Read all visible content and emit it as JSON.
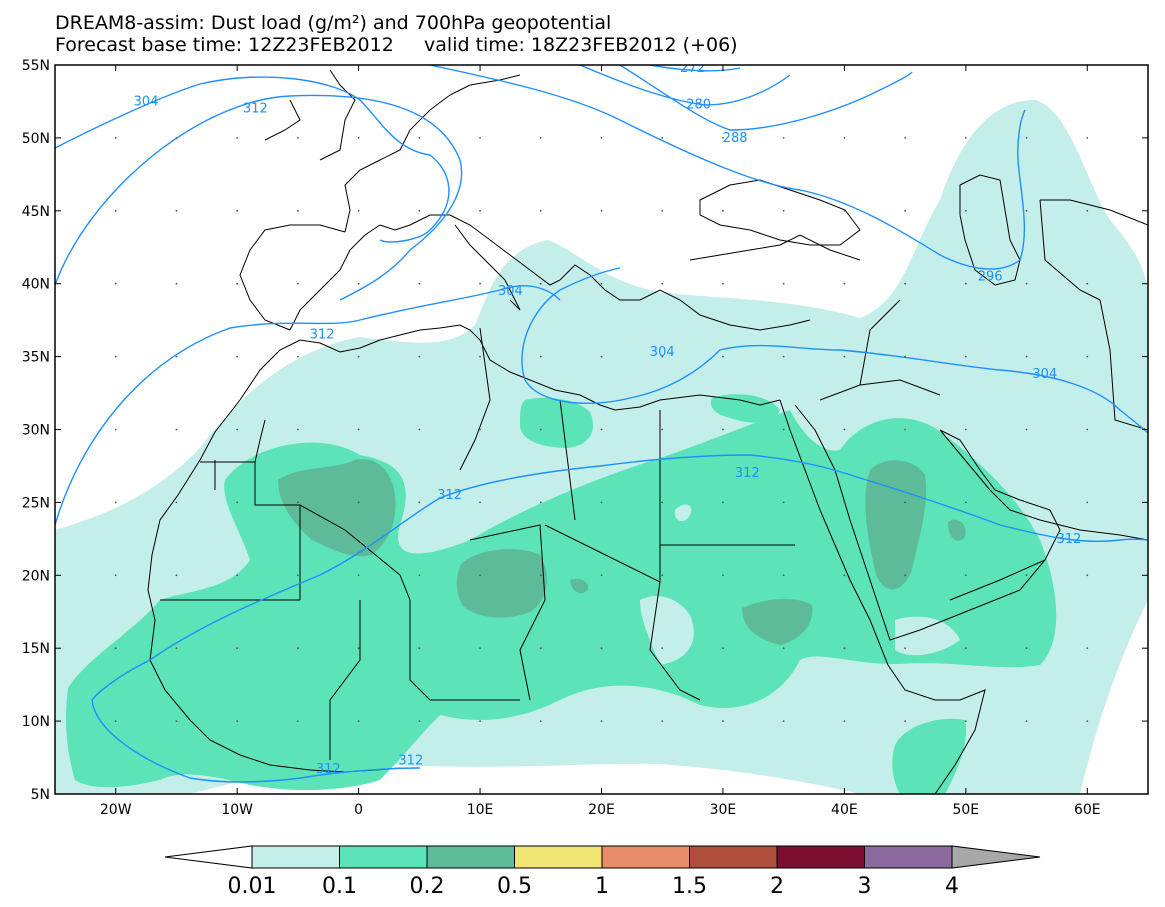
{
  "title": {
    "line1": "DREAM8-assim: Dust load (g/m²) and 700hPa geopotential",
    "line2": "Forecast base time: 12Z23FEB2012     valid time: 18Z23FEB2012 (+06)"
  },
  "map": {
    "lon_range": [
      -25,
      65
    ],
    "lat_range": [
      5,
      55
    ],
    "lat_ticks": [
      {
        "lat": 55,
        "label": "55N"
      },
      {
        "lat": 50,
        "label": "50N"
      },
      {
        "lat": 45,
        "label": "45N"
      },
      {
        "lat": 40,
        "label": "40N"
      },
      {
        "lat": 35,
        "label": "35N"
      },
      {
        "lat": 30,
        "label": "30N"
      },
      {
        "lat": 25,
        "label": "25N"
      },
      {
        "lat": 20,
        "label": "20N"
      },
      {
        "lat": 15,
        "label": "15N"
      },
      {
        "lat": 10,
        "label": "10N"
      },
      {
        "lat": 5,
        "label": "5N"
      }
    ],
    "lon_ticks": [
      {
        "lon": -20,
        "label": "20W"
      },
      {
        "lon": -10,
        "label": "10W"
      },
      {
        "lon": 0,
        "label": "0"
      },
      {
        "lon": 10,
        "label": "10E"
      },
      {
        "lon": 20,
        "label": "20E"
      },
      {
        "lon": 30,
        "label": "30E"
      },
      {
        "lon": 40,
        "label": "40E"
      },
      {
        "lon": 50,
        "label": "50E"
      },
      {
        "lon": 60,
        "label": "60E"
      }
    ],
    "contour_color": "#1e90ff",
    "contour_labels": [
      {
        "text": "304",
        "lon": -17.5,
        "lat": 52.5
      },
      {
        "text": "312",
        "lon": -8.5,
        "lat": 52
      },
      {
        "text": "272",
        "lon": 27.5,
        "lat": 54.8
      },
      {
        "text": "280",
        "lon": 28,
        "lat": 52.3
      },
      {
        "text": "288",
        "lon": 31,
        "lat": 50
      },
      {
        "text": "296",
        "lon": 52,
        "lat": 40.5
      },
      {
        "text": "304",
        "lon": 12.5,
        "lat": 39.5
      },
      {
        "text": "312",
        "lon": -3,
        "lat": 36.5
      },
      {
        "text": "304",
        "lon": 25,
        "lat": 35.3
      },
      {
        "text": "304",
        "lon": 56.5,
        "lat": 33.8
      },
      {
        "text": "312",
        "lon": 7.5,
        "lat": 25.5
      },
      {
        "text": "312",
        "lon": 32,
        "lat": 27
      },
      {
        "text": "312",
        "lon": 58.5,
        "lat": 22.5
      },
      {
        "text": "312",
        "lon": -2.5,
        "lat": 6.7
      },
      {
        "text": "312",
        "lon": 4.3,
        "lat": 7.3
      }
    ],
    "dust_colors": [
      "#c4eeea",
      "#5ce3b8",
      "#5dbb99"
    ]
  },
  "colorbar": {
    "colors": [
      "#c4eeea",
      "#5ce3b8",
      "#5dbb99",
      "#f0e473",
      "#e98c69",
      "#b04e3c",
      "#7d0d30",
      "#8b6aa0"
    ],
    "under_color": "#ffffff",
    "over_color": "#a8a8a8",
    "labels": [
      "0.01",
      "0.1",
      "0.2",
      "0.5",
      "1",
      "1.5",
      "2",
      "3",
      "4"
    ]
  }
}
